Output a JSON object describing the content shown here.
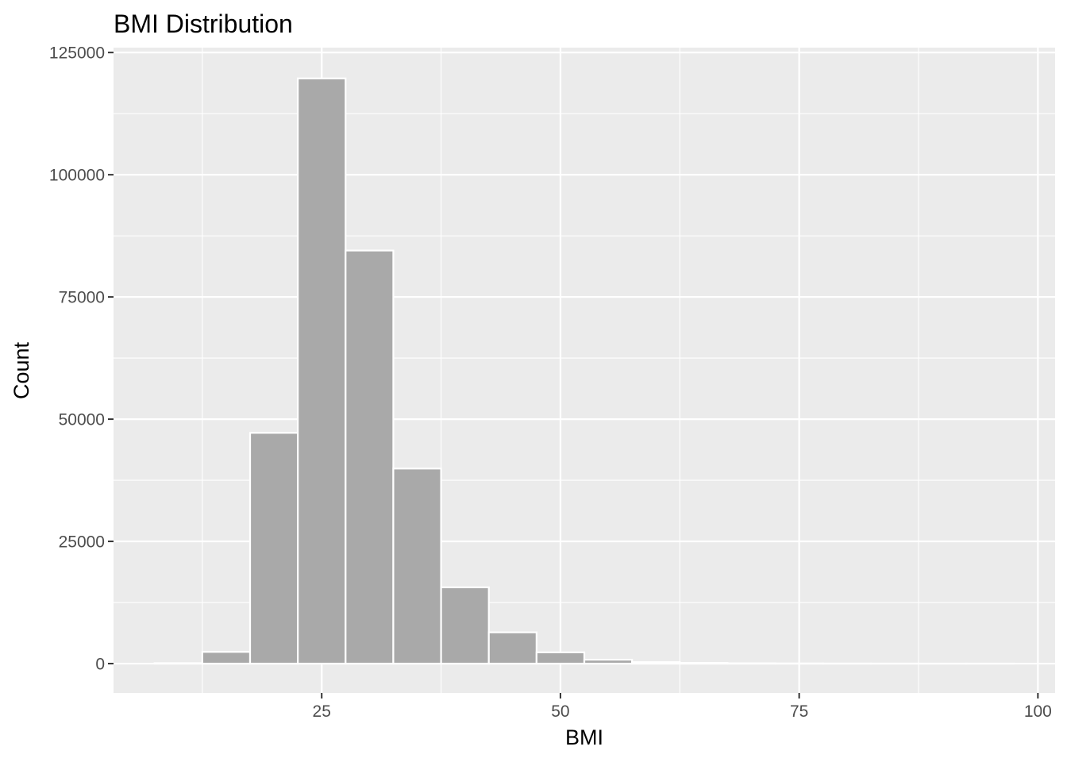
{
  "chart_data": {
    "type": "bar",
    "subtype": "histogram",
    "title": "BMI Distribution",
    "xlabel": "BMI",
    "ylabel": "Count",
    "xlim": [
      3.2,
      101.8
    ],
    "ylim": [
      -6000,
      126000
    ],
    "x_ticks": [
      25,
      50,
      75,
      100
    ],
    "y_ticks": [
      0,
      25000,
      50000,
      75000,
      100000,
      125000
    ],
    "x_tick_labels": [
      "25",
      "50",
      "75",
      "100"
    ],
    "y_tick_labels": [
      "0",
      "25000",
      "50000",
      "75000",
      "100000",
      "125000"
    ],
    "grid": true,
    "legend": "none",
    "bin_width": 5,
    "bins": [
      {
        "x0": 7.5,
        "x1": 12.5,
        "count": 100
      },
      {
        "x0": 12.5,
        "x1": 17.5,
        "count": 2400
      },
      {
        "x0": 17.5,
        "x1": 22.5,
        "count": 47200
      },
      {
        "x0": 22.5,
        "x1": 27.5,
        "count": 119700
      },
      {
        "x0": 27.5,
        "x1": 32.5,
        "count": 84500
      },
      {
        "x0": 32.5,
        "x1": 37.5,
        "count": 39900
      },
      {
        "x0": 37.5,
        "x1": 42.5,
        "count": 15600
      },
      {
        "x0": 42.5,
        "x1": 47.5,
        "count": 6400
      },
      {
        "x0": 47.5,
        "x1": 52.5,
        "count": 2300
      },
      {
        "x0": 52.5,
        "x1": 57.5,
        "count": 800
      },
      {
        "x0": 57.5,
        "x1": 62.5,
        "count": 300
      },
      {
        "x0": 62.5,
        "x1": 67.5,
        "count": 150
      },
      {
        "x0": 67.5,
        "x1": 72.5,
        "count": 60
      },
      {
        "x0": 72.5,
        "x1": 77.5,
        "count": 40
      },
      {
        "x0": 77.5,
        "x1": 82.5,
        "count": 25
      },
      {
        "x0": 82.5,
        "x1": 87.5,
        "count": 15
      },
      {
        "x0": 87.5,
        "x1": 92.5,
        "count": 10
      },
      {
        "x0": 92.5,
        "x1": 97.5,
        "count": 8
      }
    ]
  },
  "style": {
    "panel_background": "#ebebeb",
    "grid_major": "#ffffff",
    "grid_minor": "#ffffff",
    "bar_fill": "#a9a9a9",
    "bar_outline": "#ffffff",
    "tick_color": "#333333"
  }
}
